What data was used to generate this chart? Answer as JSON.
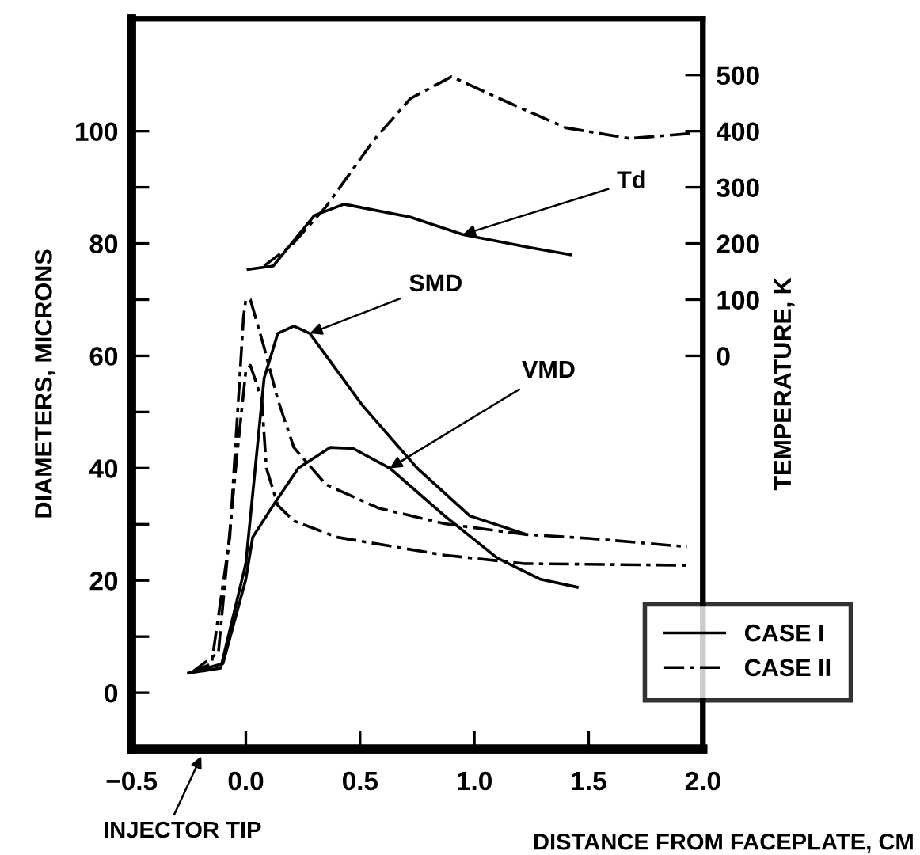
{
  "chart_data": {
    "type": "line",
    "xlabel": "DISTANCE FROM FACEPLATE, CM",
    "ylabel": "DIAMETERS, MICRONS",
    "y2label": "TEMPERATURE, K",
    "xlim": [
      -0.5,
      2.0
    ],
    "ylim": [
      -10,
      120
    ],
    "y2lim": [
      -700,
      600
    ],
    "xticks": [
      {
        "value": -0.5,
        "label": "−0.5"
      },
      {
        "value": 0.0,
        "label": "0.0"
      },
      {
        "value": 0.5,
        "label": "0.5"
      },
      {
        "value": 1.0,
        "label": "1.0"
      },
      {
        "value": 1.5,
        "label": "1.5"
      },
      {
        "value": 2.0,
        "label": "2.0"
      }
    ],
    "yticks": [
      0,
      {
        "value": 10,
        "label": null
      },
      20,
      {
        "value": 30,
        "label": null
      },
      40,
      {
        "value": 50,
        "label": null
      },
      60,
      {
        "value": 70,
        "label": null
      },
      80,
      {
        "value": 90,
        "label": null
      },
      100
    ],
    "y2ticks": [
      0,
      100,
      200,
      300,
      400,
      500
    ],
    "grid": false,
    "legend": "bottom right",
    "series": [
      {
        "name": "CASE I",
        "color": "#000000",
        "line_style": "solid",
        "x": [
          -0.25,
          -0.11,
          0.0,
          0.08,
          0.14,
          0.21,
          0.28,
          0.51,
          0.75,
          0.98,
          1.22
        ],
        "values": [
          3.5,
          4.4,
          23,
          56,
          64,
          65.3,
          64,
          51.2,
          40,
          31.5,
          28.3
        ]
      },
      {
        "color": "#000000",
        "line_style": "solid",
        "x": [
          -0.25,
          -0.1,
          0.0,
          0.03,
          0.12,
          0.23,
          0.37,
          0.47,
          0.63,
          0.87,
          1.1,
          1.29,
          1.45
        ],
        "values": [
          3.5,
          5.2,
          20.2,
          27.7,
          33.4,
          40,
          43.7,
          43.5,
          40,
          31.5,
          24,
          20.2,
          18.8
        ]
      },
      {
        "name": "CASE II",
        "color": "#000000",
        "line_style": "dashdot",
        "x": [
          -0.24,
          -0.15,
          -0.07,
          -0.01,
          0.0,
          0.02,
          0.08,
          0.14,
          0.21,
          0.35,
          0.58,
          0.87,
          1.22,
          1.5,
          1.93
        ],
        "values": [
          3.5,
          5.2,
          27.7,
          67,
          70,
          70,
          61.5,
          52.2,
          43.7,
          37.1,
          32.9,
          30.1,
          28.2,
          27.5,
          26
        ]
      },
      {
        "color": "#000000",
        "line_style": "dashdot",
        "x": [
          -0.24,
          -0.12,
          -0.04,
          0.0,
          0.02,
          0.07,
          0.09,
          0.14,
          0.21,
          0.4,
          0.87,
          1.22,
          1.93
        ],
        "values": [
          3.5,
          7.2,
          41.8,
          57.3,
          58.3,
          52.2,
          40,
          33.4,
          30.6,
          27.7,
          24.5,
          23,
          22.7
        ]
      },
      {
        "color": "#000000",
        "line_style": "solid",
        "axis": "y2",
        "x": [
          0.01,
          0.12,
          0.3,
          0.43,
          0.72,
          0.95,
          1.24,
          1.42
        ],
        "values": [
          154,
          160,
          250,
          270,
          247,
          216,
          193,
          180
        ]
      },
      {
        "color": "#000000",
        "line_style": "dashdot",
        "axis": "y2",
        "x": [
          0.08,
          0.2,
          0.35,
          0.56,
          0.72,
          0.9,
          1.11,
          1.4,
          1.68,
          1.95
        ],
        "values": [
          160,
          197,
          265,
          384,
          458,
          497,
          458,
          406,
          387,
          396
        ]
      }
    ],
    "annotations": [
      {
        "text": "Td",
        "x": 0.95,
        "y": 81.6
      },
      {
        "text": "SMD",
        "x": 0.28,
        "y": 64
      },
      {
        "text": "VMD",
        "x": 0.63,
        "y": 40
      },
      "INJECTOR TIP"
    ]
  }
}
